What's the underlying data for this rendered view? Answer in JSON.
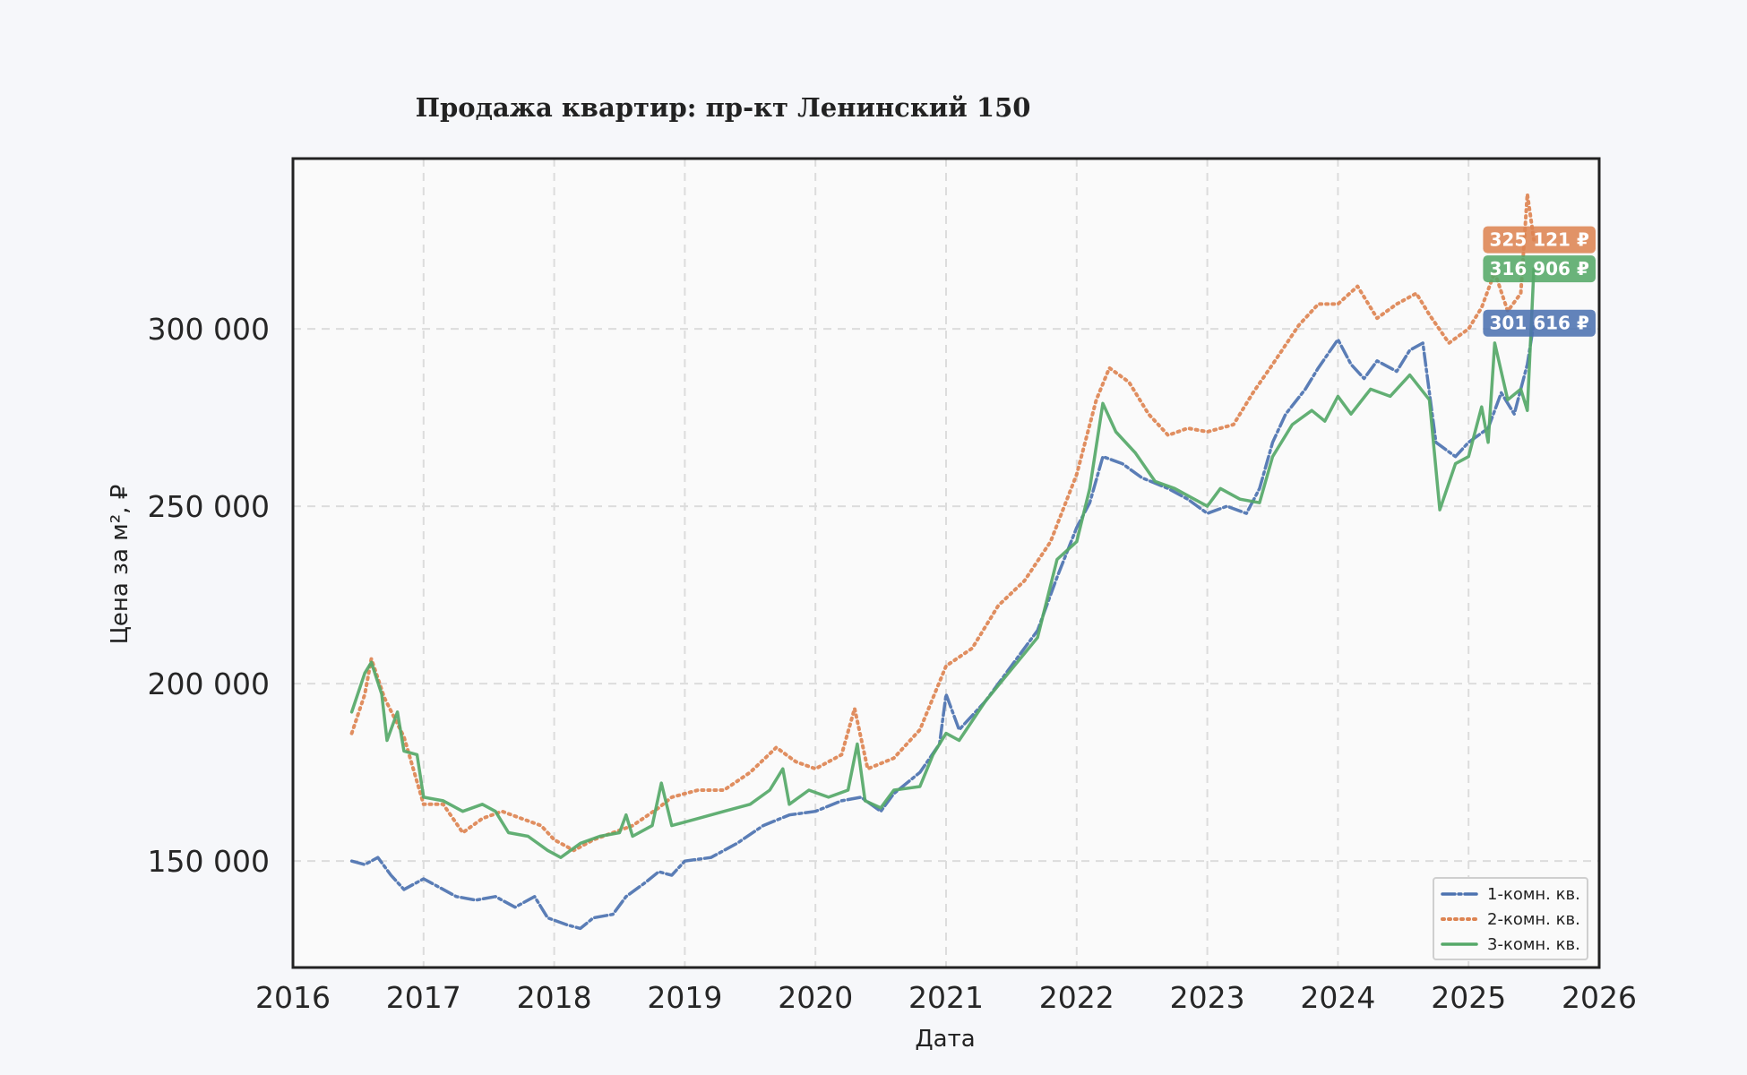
{
  "chart_data": {
    "type": "line",
    "title": "Продажа квартир: пр-кт Ленинский 150",
    "xlabel": "Дата",
    "ylabel": "Цена за м², ₽",
    "xlim": [
      2016.0,
      2026.0
    ],
    "ylim": [
      120000,
      348000
    ],
    "x_ticks": [
      2016,
      2017,
      2018,
      2019,
      2020,
      2021,
      2022,
      2023,
      2024,
      2025,
      2026
    ],
    "x_tick_labels": [
      "2016",
      "2017",
      "2018",
      "2019",
      "2020",
      "2021",
      "2022",
      "2023",
      "2024",
      "2025",
      "2026"
    ],
    "y_ticks": [
      150000,
      200000,
      250000,
      300000
    ],
    "y_tick_labels": [
      "150 000",
      "200 000",
      "250 000",
      "300 000"
    ],
    "grid": true,
    "legend_position": "bottom-right",
    "series": [
      {
        "name": "1-комн. кв.",
        "color": "#4c72b0",
        "style": "dashdot",
        "last_value_label": "301 616 ₽",
        "points": [
          [
            2016.45,
            150000
          ],
          [
            2016.55,
            149000
          ],
          [
            2016.65,
            151000
          ],
          [
            2016.75,
            146000
          ],
          [
            2016.85,
            142000
          ],
          [
            2017.0,
            145000
          ],
          [
            2017.1,
            143000
          ],
          [
            2017.25,
            140000
          ],
          [
            2017.4,
            139000
          ],
          [
            2017.55,
            140000
          ],
          [
            2017.7,
            137000
          ],
          [
            2017.85,
            140000
          ],
          [
            2017.95,
            134000
          ],
          [
            2018.1,
            132000
          ],
          [
            2018.2,
            131000
          ],
          [
            2018.3,
            134000
          ],
          [
            2018.45,
            135000
          ],
          [
            2018.55,
            140000
          ],
          [
            2018.7,
            144000
          ],
          [
            2018.8,
            147000
          ],
          [
            2018.9,
            146000
          ],
          [
            2019.0,
            150000
          ],
          [
            2019.2,
            151000
          ],
          [
            2019.4,
            155000
          ],
          [
            2019.6,
            160000
          ],
          [
            2019.8,
            163000
          ],
          [
            2020.0,
            164000
          ],
          [
            2020.2,
            167000
          ],
          [
            2020.35,
            168000
          ],
          [
            2020.5,
            164000
          ],
          [
            2020.6,
            169000
          ],
          [
            2020.8,
            175000
          ],
          [
            2020.95,
            183000
          ],
          [
            2021.0,
            197000
          ],
          [
            2021.1,
            187000
          ],
          [
            2021.3,
            195000
          ],
          [
            2021.5,
            205000
          ],
          [
            2021.7,
            215000
          ],
          [
            2021.85,
            230000
          ],
          [
            2022.0,
            244000
          ],
          [
            2022.1,
            251000
          ],
          [
            2022.2,
            264000
          ],
          [
            2022.35,
            262000
          ],
          [
            2022.5,
            258000
          ],
          [
            2022.7,
            255000
          ],
          [
            2022.85,
            252000
          ],
          [
            2023.0,
            248000
          ],
          [
            2023.15,
            250000
          ],
          [
            2023.3,
            248000
          ],
          [
            2023.4,
            255000
          ],
          [
            2023.5,
            268000
          ],
          [
            2023.6,
            276000
          ],
          [
            2023.75,
            283000
          ],
          [
            2023.85,
            289000
          ],
          [
            2024.0,
            297000
          ],
          [
            2024.1,
            290000
          ],
          [
            2024.2,
            286000
          ],
          [
            2024.3,
            291000
          ],
          [
            2024.45,
            288000
          ],
          [
            2024.55,
            294000
          ],
          [
            2024.65,
            296000
          ],
          [
            2024.75,
            268000
          ],
          [
            2024.9,
            264000
          ],
          [
            2025.0,
            268000
          ],
          [
            2025.15,
            272000
          ],
          [
            2025.25,
            282000
          ],
          [
            2025.35,
            276000
          ],
          [
            2025.45,
            290000
          ],
          [
            2025.5,
            301616
          ]
        ]
      },
      {
        "name": "2-комн. кв.",
        "color": "#dd8452",
        "style": "dotted",
        "last_value_label": "325 121 ₽",
        "points": [
          [
            2016.45,
            186000
          ],
          [
            2016.55,
            197000
          ],
          [
            2016.6,
            207000
          ],
          [
            2016.7,
            196000
          ],
          [
            2016.85,
            185000
          ],
          [
            2017.0,
            166000
          ],
          [
            2017.15,
            166000
          ],
          [
            2017.3,
            158000
          ],
          [
            2017.45,
            162000
          ],
          [
            2017.6,
            164000
          ],
          [
            2017.75,
            162000
          ],
          [
            2017.9,
            160000
          ],
          [
            2018.0,
            156000
          ],
          [
            2018.15,
            153000
          ],
          [
            2018.3,
            156000
          ],
          [
            2018.45,
            158000
          ],
          [
            2018.6,
            160000
          ],
          [
            2018.8,
            165000
          ],
          [
            2018.9,
            168000
          ],
          [
            2019.1,
            170000
          ],
          [
            2019.3,
            170000
          ],
          [
            2019.5,
            175000
          ],
          [
            2019.7,
            182000
          ],
          [
            2019.85,
            178000
          ],
          [
            2020.0,
            176000
          ],
          [
            2020.2,
            180000
          ],
          [
            2020.3,
            193000
          ],
          [
            2020.4,
            176000
          ],
          [
            2020.6,
            179000
          ],
          [
            2020.8,
            187000
          ],
          [
            2021.0,
            205000
          ],
          [
            2021.2,
            210000
          ],
          [
            2021.4,
            222000
          ],
          [
            2021.6,
            229000
          ],
          [
            2021.8,
            240000
          ],
          [
            2022.0,
            259000
          ],
          [
            2022.15,
            280000
          ],
          [
            2022.25,
            289000
          ],
          [
            2022.4,
            285000
          ],
          [
            2022.55,
            276000
          ],
          [
            2022.7,
            270000
          ],
          [
            2022.85,
            272000
          ],
          [
            2023.0,
            271000
          ],
          [
            2023.2,
            273000
          ],
          [
            2023.35,
            282000
          ],
          [
            2023.5,
            290000
          ],
          [
            2023.7,
            301000
          ],
          [
            2023.85,
            307000
          ],
          [
            2024.0,
            307000
          ],
          [
            2024.15,
            312000
          ],
          [
            2024.3,
            303000
          ],
          [
            2024.45,
            307000
          ],
          [
            2024.6,
            310000
          ],
          [
            2024.7,
            304000
          ],
          [
            2024.85,
            296000
          ],
          [
            2025.0,
            300000
          ],
          [
            2025.1,
            306000
          ],
          [
            2025.2,
            316000
          ],
          [
            2025.3,
            305000
          ],
          [
            2025.4,
            310000
          ],
          [
            2025.45,
            338000
          ],
          [
            2025.5,
            325121
          ]
        ]
      },
      {
        "name": "3-комн. кв.",
        "color": "#55a868",
        "style": "solid",
        "last_value_label": "316 906 ₽",
        "points": [
          [
            2016.45,
            192000
          ],
          [
            2016.55,
            203000
          ],
          [
            2016.6,
            206000
          ],
          [
            2016.68,
            197000
          ],
          [
            2016.72,
            184000
          ],
          [
            2016.8,
            192000
          ],
          [
            2016.85,
            181000
          ],
          [
            2016.95,
            180000
          ],
          [
            2017.0,
            168000
          ],
          [
            2017.15,
            167000
          ],
          [
            2017.3,
            164000
          ],
          [
            2017.45,
            166000
          ],
          [
            2017.55,
            164000
          ],
          [
            2017.65,
            158000
          ],
          [
            2017.8,
            157000
          ],
          [
            2017.95,
            153000
          ],
          [
            2018.05,
            151000
          ],
          [
            2018.2,
            155000
          ],
          [
            2018.35,
            157000
          ],
          [
            2018.5,
            158000
          ],
          [
            2018.55,
            163000
          ],
          [
            2018.6,
            157000
          ],
          [
            2018.75,
            160000
          ],
          [
            2018.82,
            172000
          ],
          [
            2018.9,
            160000
          ],
          [
            2019.1,
            162000
          ],
          [
            2019.3,
            164000
          ],
          [
            2019.5,
            166000
          ],
          [
            2019.65,
            170000
          ],
          [
            2019.75,
            176000
          ],
          [
            2019.8,
            166000
          ],
          [
            2019.95,
            170000
          ],
          [
            2020.1,
            168000
          ],
          [
            2020.25,
            170000
          ],
          [
            2020.32,
            183000
          ],
          [
            2020.38,
            167000
          ],
          [
            2020.5,
            165000
          ],
          [
            2020.6,
            170000
          ],
          [
            2020.8,
            171000
          ],
          [
            2020.9,
            180000
          ],
          [
            2021.0,
            186000
          ],
          [
            2021.1,
            184000
          ],
          [
            2021.3,
            195000
          ],
          [
            2021.5,
            204000
          ],
          [
            2021.7,
            213000
          ],
          [
            2021.85,
            235000
          ],
          [
            2022.0,
            240000
          ],
          [
            2022.1,
            255000
          ],
          [
            2022.2,
            279000
          ],
          [
            2022.3,
            271000
          ],
          [
            2022.45,
            265000
          ],
          [
            2022.6,
            257000
          ],
          [
            2022.75,
            255000
          ],
          [
            2022.9,
            252000
          ],
          [
            2023.0,
            250000
          ],
          [
            2023.1,
            255000
          ],
          [
            2023.25,
            252000
          ],
          [
            2023.4,
            251000
          ],
          [
            2023.5,
            264000
          ],
          [
            2023.65,
            273000
          ],
          [
            2023.8,
            277000
          ],
          [
            2023.9,
            274000
          ],
          [
            2024.0,
            281000
          ],
          [
            2024.1,
            276000
          ],
          [
            2024.25,
            283000
          ],
          [
            2024.4,
            281000
          ],
          [
            2024.55,
            287000
          ],
          [
            2024.7,
            280000
          ],
          [
            2024.78,
            249000
          ],
          [
            2024.9,
            262000
          ],
          [
            2025.0,
            264000
          ],
          [
            2025.1,
            278000
          ],
          [
            2025.15,
            268000
          ],
          [
            2025.2,
            296000
          ],
          [
            2025.3,
            280000
          ],
          [
            2025.4,
            283000
          ],
          [
            2025.45,
            277000
          ],
          [
            2025.5,
            316906
          ]
        ]
      }
    ]
  }
}
